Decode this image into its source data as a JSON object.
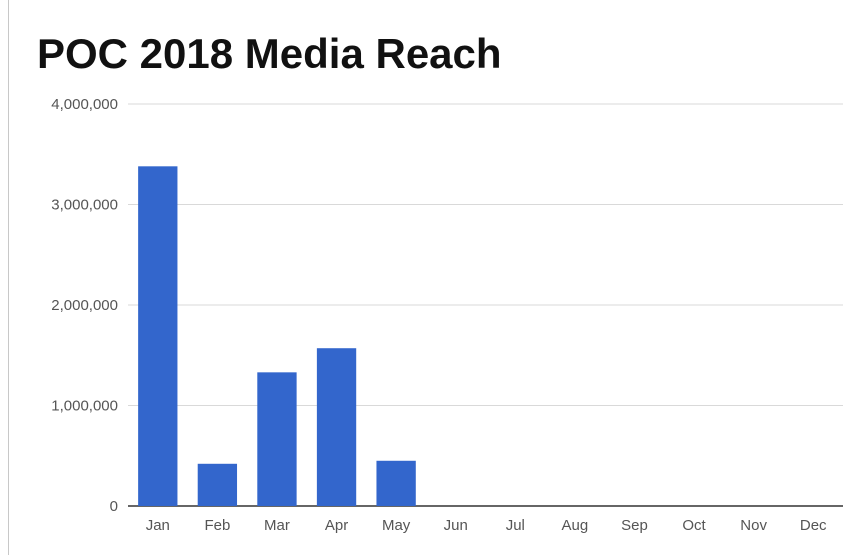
{
  "chart_data": {
    "type": "bar",
    "title": "POC 2018 Media Reach",
    "xlabel": "",
    "ylabel": "",
    "categories": [
      "Jan",
      "Feb",
      "Mar",
      "Apr",
      "May",
      "Jun",
      "Jul",
      "Aug",
      "Sep",
      "Oct",
      "Nov",
      "Dec"
    ],
    "values": [
      3380000,
      420000,
      1330000,
      1570000,
      450000,
      0,
      0,
      0,
      0,
      0,
      0,
      0
    ],
    "ylim": [
      0,
      4000000
    ],
    "yticks": [
      0,
      1000000,
      2000000,
      3000000,
      4000000
    ],
    "ytick_labels": [
      "0",
      "1,000,000",
      "2,000,000",
      "3,000,000",
      "4,000,000"
    ],
    "grid": true,
    "legend": "none",
    "bar_color": "#3366cc"
  }
}
